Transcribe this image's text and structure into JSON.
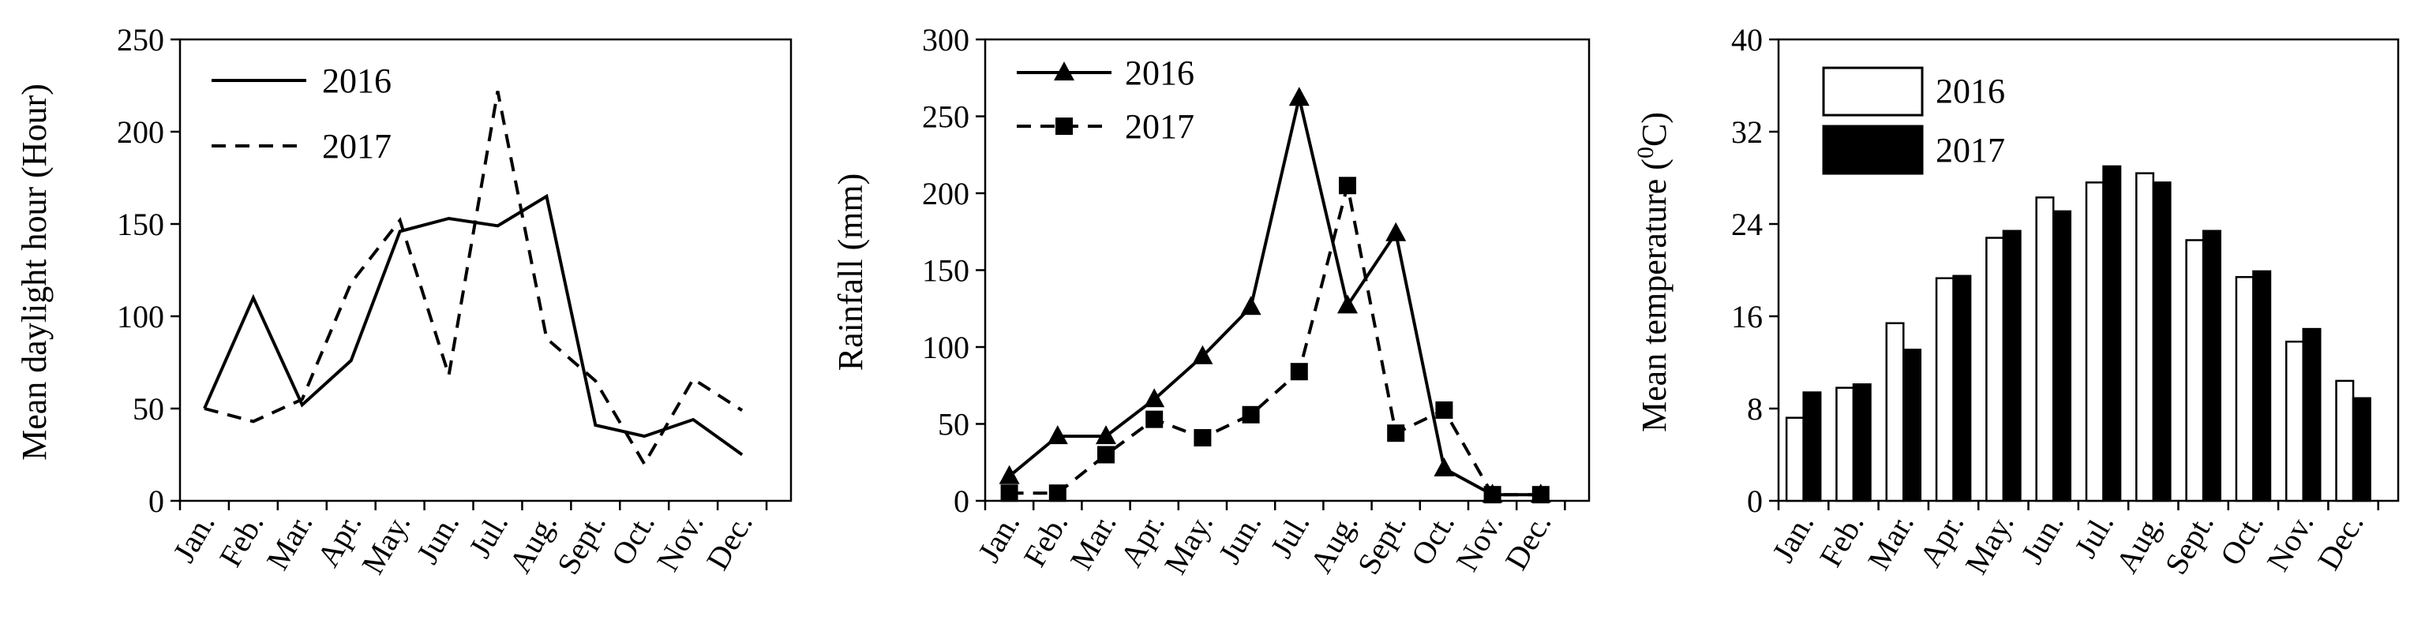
{
  "chart_data": [
    {
      "type": "line",
      "ylabel": "Mean daylight hour (Hour)",
      "xlabel": "",
      "categories": [
        "Jan.",
        "Feb.",
        "Mar.",
        "Apr.",
        "May.",
        "Jun.",
        "Jul.",
        "Aug.",
        "Sept.",
        "Oct.",
        "Nov.",
        "Dec."
      ],
      "ylim": [
        0,
        250
      ],
      "yticks": [
        "0",
        "50",
        "100",
        "150",
        "200",
        "250"
      ],
      "legend_position": "top-left",
      "grid": false,
      "series": [
        {
          "name": "2016",
          "style": "solid",
          "marker": "none",
          "values": [
            50,
            110,
            52,
            76,
            146,
            153,
            149,
            165,
            41,
            35,
            44,
            25
          ]
        },
        {
          "name": "2017",
          "style": "dashed",
          "marker": "none",
          "values": [
            50,
            43,
            55,
            118,
            152,
            68,
            222,
            88,
            65,
            20,
            66,
            49
          ]
        }
      ]
    },
    {
      "type": "line",
      "ylabel": "Rainfall (mm)",
      "xlabel": "",
      "categories": [
        "Jan.",
        "Feb.",
        "Mar.",
        "Apr.",
        "May.",
        "Jun.",
        "Jul.",
        "Aug.",
        "Sept.",
        "Oct.",
        "Nov.",
        "Dec."
      ],
      "ylim": [
        0,
        300
      ],
      "yticks": [
        "0",
        "50",
        "100",
        "150",
        "200",
        "250",
        "300"
      ],
      "legend_position": "top-left",
      "grid": false,
      "series": [
        {
          "name": "2016",
          "style": "solid",
          "marker": "triangle",
          "values": [
            16,
            42,
            42,
            66,
            94,
            126,
            262,
            127,
            174,
            21,
            4,
            4
          ]
        },
        {
          "name": "2017",
          "style": "dashed",
          "marker": "square",
          "values": [
            5,
            5,
            30,
            53,
            41,
            56,
            84,
            205,
            44,
            59,
            4,
            4
          ]
        }
      ]
    },
    {
      "type": "bar",
      "ylabel": "Mean temperature (0C)",
      "xlabel": "",
      "categories": [
        "Jan.",
        "Feb.",
        "Mar.",
        "Apr.",
        "May.",
        "Jun.",
        "Jul.",
        "Aug.",
        "Sept.",
        "Oct.",
        "Nov.",
        "Dec."
      ],
      "ylim": [
        0,
        40
      ],
      "yticks": [
        "0",
        "8",
        "16",
        "24",
        "32",
        "40"
      ],
      "legend_position": "top-left",
      "grid": false,
      "series": [
        {
          "name": "2016",
          "fill": "#ffffff",
          "values": [
            7.2,
            9.8,
            15.4,
            19.3,
            22.8,
            26.3,
            27.6,
            28.4,
            22.6,
            19.4,
            13.8,
            10.4
          ]
        },
        {
          "name": "2017",
          "fill": "#000000",
          "values": [
            9.4,
            10.1,
            13.1,
            19.5,
            23.4,
            25.1,
            29.0,
            27.6,
            23.4,
            19.9,
            14.9,
            8.9
          ]
        }
      ]
    }
  ]
}
